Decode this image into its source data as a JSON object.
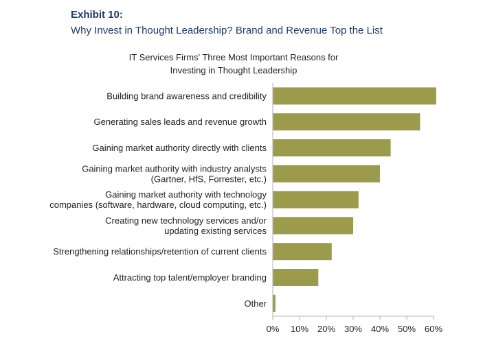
{
  "exhibit": {
    "label": "Exhibit 10:",
    "title": "Why Invest in Thought Leadership? Brand and Revenue Top the List"
  },
  "chart_data": {
    "type": "bar",
    "orientation": "horizontal",
    "title_lines": [
      "IT Services Firms' Three Most Important Reasons for",
      "Investing in Thought Leadership"
    ],
    "categories": [
      [
        "Building brand awareness and credibility"
      ],
      [
        "Generating sales leads and revenue growth"
      ],
      [
        "Gaining market authority directly with clients"
      ],
      [
        "Gaining market authority with industry analysts",
        "(Gartner, HfS, Forrester, etc.)"
      ],
      [
        "Gaining market authority with technology",
        "companies (software, hardware, cloud computing, etc.)"
      ],
      [
        "Creating new technology services and/or",
        "updating existing services"
      ],
      [
        "Strengthening relationships/retention of current clients"
      ],
      [
        "Attracting top talent/employer branding"
      ],
      [
        "Other"
      ]
    ],
    "values": [
      61,
      55,
      44,
      40,
      32,
      30,
      22,
      17,
      1
    ],
    "xlim": [
      0,
      60
    ],
    "xticks": [
      0,
      10,
      20,
      30,
      40,
      50,
      60
    ],
    "tick_labels": [
      "0%",
      "10%",
      "20%",
      "30%",
      "40%",
      "50%",
      "60%"
    ],
    "bar_color": "#9b9b4b",
    "grid": false
  }
}
